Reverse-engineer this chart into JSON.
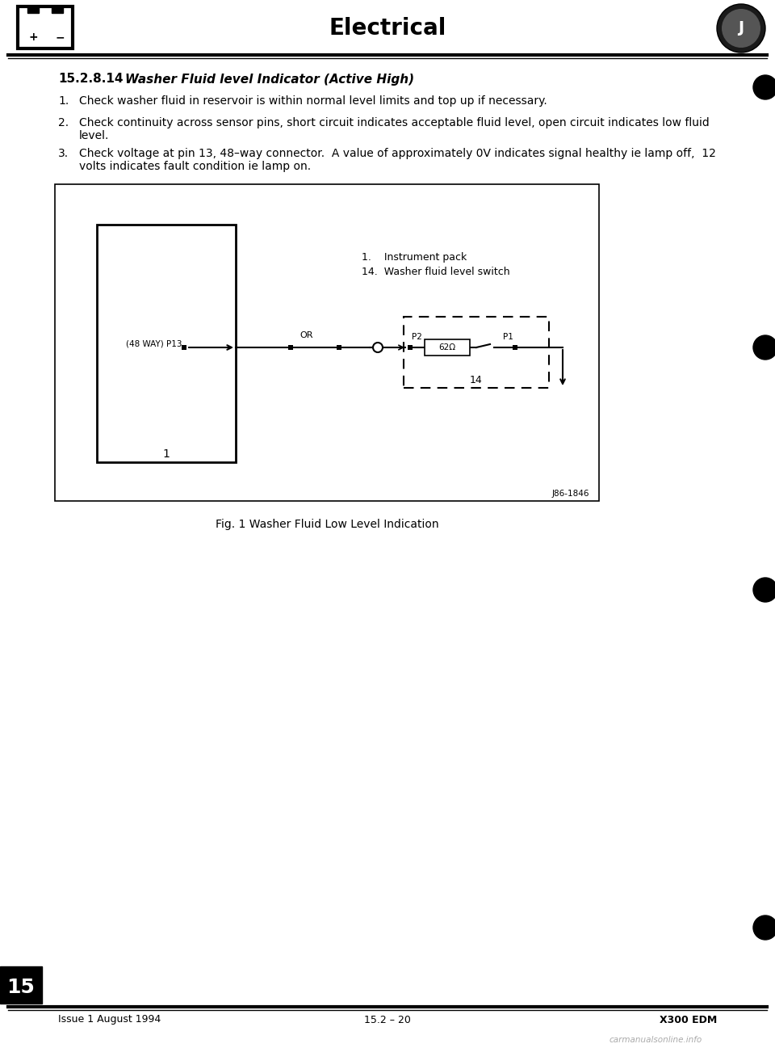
{
  "page_title": "Electrical",
  "section_number": "15.2.8.14",
  "section_title": "Washer Fluid level Indicator (Active High)",
  "bullet1": "Check washer fluid in reservoir is within normal level limits and top up if necessary.",
  "bullet2": "Check continuity across sensor pins, short circuit indicates acceptable fluid level, open circuit indicates low fluid\nlevel.",
  "bullet3": "Check voltage at pin 13, 48–way connector.  A value of approximately 0V indicates signal healthy ie lamp off,  12\nvolts indicates fault condition ie lamp on.",
  "fig_caption": "Fig. 1 Washer Fluid Low Level Indication",
  "fig_ref": "J86-1846",
  "diagram_label1": "1.    Instrument pack",
  "diagram_label2": "14.  Washer fluid level switch",
  "wire_label": "(48 WAY) P13",
  "wire_or": "OR",
  "box_label_p2": "P2",
  "box_label_resistor": "62Ω",
  "box_label_p1": "P1",
  "box_label_14": "14",
  "box1_label": "1",
  "footer_left": "Issue 1 August 1994",
  "footer_center": "15.2 – 20",
  "footer_right": "X300 EDM",
  "section_tab": "15",
  "bg_color": "#ffffff",
  "text_color": "#000000"
}
